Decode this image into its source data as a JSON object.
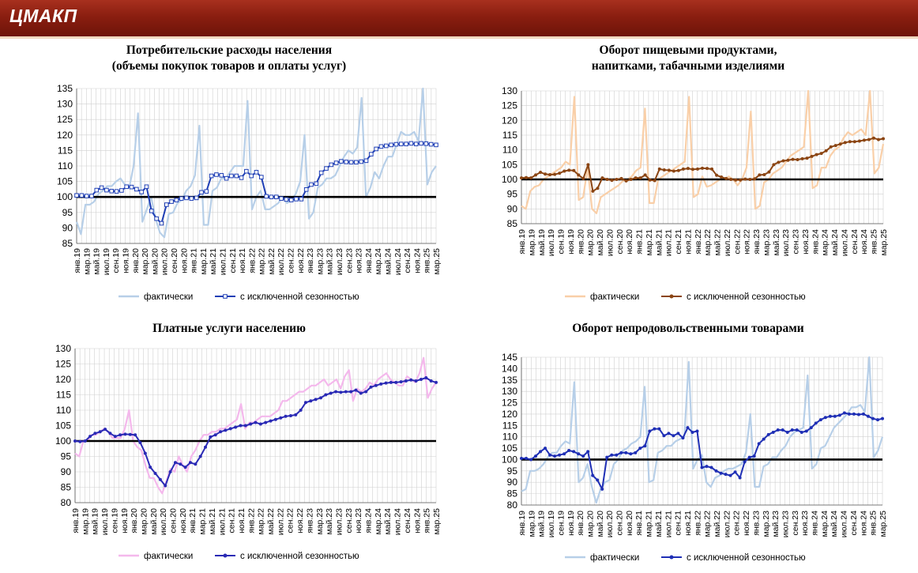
{
  "header": {
    "title": "ЦМАКП"
  },
  "x_labels": [
    "янв.19",
    "мар.19",
    "май.19",
    "июл.19",
    "сен.19",
    "ноя.19",
    "янв.20",
    "мар.20",
    "май.20",
    "июл.20",
    "сен.20",
    "ноя.20",
    "янв.21",
    "мар.21",
    "май.21",
    "июл.21",
    "сен.21",
    "ноя.21",
    "янв.22",
    "мар.22",
    "май.22",
    "июл.22",
    "сен.22",
    "ноя.22",
    "янв.23",
    "мар.23",
    "май.23",
    "июл.23",
    "сен.23",
    "ноя.23",
    "янв.24",
    "мар.24",
    "май.24",
    "июл.24",
    "сен.24",
    "ноя.24",
    "янв.25",
    "мар.25"
  ],
  "legend": {
    "actual": "фактически",
    "sa": "с исключенной сезонностью"
  },
  "colors": {
    "tl_actual": "#b7cfe8",
    "tl_sa": "#1f3fb5",
    "tr_actual": "#f9cfa8",
    "tr_sa": "#8b4513",
    "bl_actual": "#f4b8ec",
    "bl_sa": "#2a2ab5",
    "br_actual": "#b7cfe8",
    "br_sa": "#1f2fb5",
    "baseline": "#000000",
    "grid": "#d0d0d0"
  },
  "chart_data": [
    {
      "type": "line",
      "title_lines": [
        "Потребительские расходы населения",
        "(объемы покупок товаров и оплаты услуг)"
      ],
      "ylim": [
        85,
        135
      ],
      "yticks": [
        85,
        90,
        95,
        100,
        105,
        110,
        115,
        120,
        125,
        130,
        135
      ],
      "baseline": 100,
      "series": [
        {
          "name": "фактически",
          "values": [
            92,
            88,
            97.5,
            97.5,
            98.5,
            101,
            102,
            103.5,
            103.5,
            105,
            106,
            104,
            103,
            110,
            127,
            92,
            96,
            100,
            93,
            88.5,
            87,
            94.5,
            95,
            98,
            99,
            102,
            103.5,
            107,
            123,
            91,
            91,
            102,
            103,
            106,
            106,
            108,
            110,
            110,
            110,
            131,
            96,
            100,
            102,
            96,
            96,
            97,
            98,
            100,
            98,
            99,
            101,
            105,
            120,
            93,
            95,
            103,
            104,
            106,
            106,
            107,
            110,
            113,
            115,
            114,
            116,
            132,
            100,
            103,
            108,
            106,
            110,
            113,
            113,
            117,
            121,
            120,
            120,
            121,
            118,
            136,
            104,
            108,
            110
          ]
        },
        {
          "name": "с исключенной сезонностью",
          "values": [
            100.5,
            100.5,
            100.3,
            100.3,
            102.2,
            103,
            102.2,
            101.9,
            101.8,
            102.1,
            103.3,
            103.2,
            102.5,
            101.6,
            103.3,
            95.5,
            93,
            91.5,
            97.5,
            98.5,
            99,
            99.5,
            99.7,
            99.5,
            99.7,
            101.5,
            101.8,
            106.8,
            107.2,
            107,
            106,
            106.8,
            106.8,
            106.2,
            108.3,
            106.8,
            108,
            106.4,
            100.2,
            100,
            100,
            99.5,
            99.2,
            99,
            99.3,
            99.3,
            102.4,
            104,
            104.3,
            107.8,
            109.2,
            110.4,
            111,
            111.5,
            111.3,
            111.2,
            111.2,
            111.4,
            111.7,
            113.8,
            115.5,
            116.3,
            116.5,
            116.8,
            117,
            117.1,
            117.1,
            117.3,
            117.1,
            117.3,
            117.2,
            117,
            116.8
          ]
        }
      ]
    },
    {
      "type": "line",
      "title_lines": [
        "Оборот пищевыми продуктами,",
        "напитками, табачными изделиями"
      ],
      "ylim": [
        85,
        130
      ],
      "yticks": [
        85,
        90,
        95,
        100,
        105,
        110,
        115,
        120,
        125,
        130
      ],
      "baseline": 100,
      "series": [
        {
          "name": "фактически",
          "values": [
            91,
            90,
            96,
            97.5,
            98,
            100,
            101,
            102,
            103,
            104,
            106,
            105,
            128,
            93,
            94,
            104,
            90,
            88.5,
            94,
            95,
            96,
            97,
            98,
            99.5,
            100,
            101,
            103,
            104,
            124,
            92,
            92,
            100,
            101,
            102,
            103,
            104,
            105,
            106,
            128,
            94,
            95,
            101,
            97.5,
            98,
            99,
            100,
            100,
            101,
            100,
            98,
            100,
            104,
            123,
            90,
            91,
            99,
            100,
            102,
            103,
            104,
            106,
            108,
            109,
            110,
            111,
            130,
            97,
            98,
            104,
            104,
            108,
            110,
            111,
            114,
            116,
            115,
            116,
            117,
            115,
            131,
            102,
            104,
            112
          ]
        },
        {
          "name": "с исключенной сезонностью",
          "values": [
            100.5,
            100.6,
            100.5,
            101.5,
            102.4,
            101.8,
            101.6,
            101.7,
            102.1,
            102.8,
            103.1,
            103,
            101.5,
            100.3,
            105,
            96,
            97,
            100.5,
            100,
            99.7,
            100,
            100.3,
            99.5,
            100,
            100.5,
            100.5,
            101.5,
            99.8,
            99.6,
            103.5,
            103.2,
            103.1,
            102.8,
            103,
            103.5,
            103.7,
            103.4,
            103.5,
            103.8,
            103.7,
            103.5,
            101.4,
            100.8,
            100.3,
            100,
            99.8,
            99.8,
            100.1,
            100,
            100.2,
            101.5,
            101.6,
            102.5,
            105,
            105.8,
            106.3,
            106.5,
            106.8,
            106.7,
            107,
            107.2,
            107.8,
            108.4,
            108.8,
            109.7,
            111,
            111.5,
            112,
            112.5,
            112.8,
            112.8,
            113,
            113.3,
            113.5,
            114,
            113.5,
            113.8
          ]
        }
      ]
    },
    {
      "type": "line",
      "title_lines": [
        "Платные услуги населению"
      ],
      "ylim": [
        80,
        130
      ],
      "yticks": [
        80,
        85,
        90,
        95,
        100,
        105,
        110,
        115,
        120,
        125,
        130
      ],
      "baseline": 100,
      "series": [
        {
          "name": "фактически",
          "values": [
            96,
            95,
            100,
            100,
            102,
            102,
            103,
            104,
            103,
            101,
            101,
            101,
            104,
            110,
            100,
            98,
            97,
            92,
            88,
            88,
            85,
            83,
            87,
            91,
            90,
            95,
            92,
            90,
            95,
            97,
            100,
            102,
            102,
            103,
            103,
            104,
            104,
            105,
            106,
            107,
            112,
            104,
            106,
            106,
            107,
            108,
            108,
            108,
            109,
            110,
            113,
            113,
            114,
            115,
            116,
            116,
            117,
            118,
            118,
            119,
            120,
            118,
            119,
            120,
            117,
            121,
            123,
            113,
            117,
            116,
            117,
            119,
            118,
            120,
            121,
            122,
            120,
            119,
            118,
            118,
            121,
            120,
            119,
            122,
            127,
            114,
            117,
            119
          ]
        },
        {
          "name": "с исключенной сезонностью",
          "values": [
            100,
            99.8,
            100,
            101.5,
            102.5,
            103,
            103.8,
            102.5,
            101.5,
            102,
            102.2,
            102.1,
            102,
            99.5,
            96,
            91.5,
            89.5,
            87.5,
            85.5,
            90,
            93,
            92.5,
            91.5,
            93,
            92.5,
            95,
            98,
            101.3,
            102,
            103,
            103.5,
            104,
            104.5,
            105,
            105,
            105.5,
            106,
            105.5,
            106,
            106.5,
            107,
            107.5,
            108,
            108.2,
            108.5,
            110,
            112.5,
            113,
            113.5,
            114,
            115,
            115.5,
            116,
            115.8,
            116,
            116,
            116.5,
            115.5,
            116,
            117.5,
            118,
            118.5,
            118.8,
            119,
            119,
            119.2,
            119.5,
            119.8,
            119.5,
            120,
            120.5,
            119.5,
            119
          ]
        }
      ]
    },
    {
      "type": "line",
      "title_lines": [
        "Оборот непродовольственными товарами"
      ],
      "ylim": [
        80,
        145
      ],
      "yticks": [
        80,
        85,
        90,
        95,
        100,
        105,
        110,
        115,
        120,
        125,
        130,
        135,
        140,
        145
      ],
      "baseline": 100,
      "series": [
        {
          "name": "фактически",
          "values": [
            86,
            87,
            95,
            95,
            96,
            98,
            101,
            103,
            103,
            106,
            108,
            107,
            134,
            90,
            92,
            98,
            88,
            81,
            87,
            90,
            91,
            98,
            100,
            104,
            105,
            107,
            108,
            110,
            132,
            90,
            91,
            103,
            104,
            106,
            106,
            108,
            109,
            110,
            143,
            96,
            100,
            102,
            90,
            88,
            92,
            93,
            95,
            96,
            96,
            97,
            98,
            103,
            120,
            88,
            88,
            97,
            98,
            101,
            101,
            104,
            106,
            110,
            112,
            113,
            114,
            137,
            96,
            98,
            105,
            106,
            110,
            114,
            116,
            118,
            120,
            123,
            123,
            124,
            121,
            145,
            101,
            104,
            110
          ]
        },
        {
          "name": "с исключенной сезонностью",
          "values": [
            100.5,
            100.5,
            100,
            101.5,
            103.5,
            105,
            102,
            101.5,
            102,
            102.5,
            104,
            103.5,
            102.5,
            101.5,
            103.5,
            93,
            91,
            87,
            101,
            102,
            102,
            103,
            103,
            102.5,
            103,
            105,
            106,
            112.5,
            113.5,
            113.5,
            110.5,
            111.5,
            110.5,
            111.5,
            109.5,
            114,
            112,
            112.5,
            96.5,
            97,
            96.5,
            95,
            94,
            93.5,
            93,
            94.5,
            92,
            99,
            101,
            101.5,
            107,
            109,
            111,
            112,
            113,
            113,
            112,
            113,
            113,
            112,
            112.5,
            114,
            116,
            117.5,
            118.5,
            119,
            119,
            119.5,
            120.5,
            120,
            120,
            119.8,
            120,
            119,
            118,
            117.5,
            118
          ]
        }
      ]
    }
  ]
}
